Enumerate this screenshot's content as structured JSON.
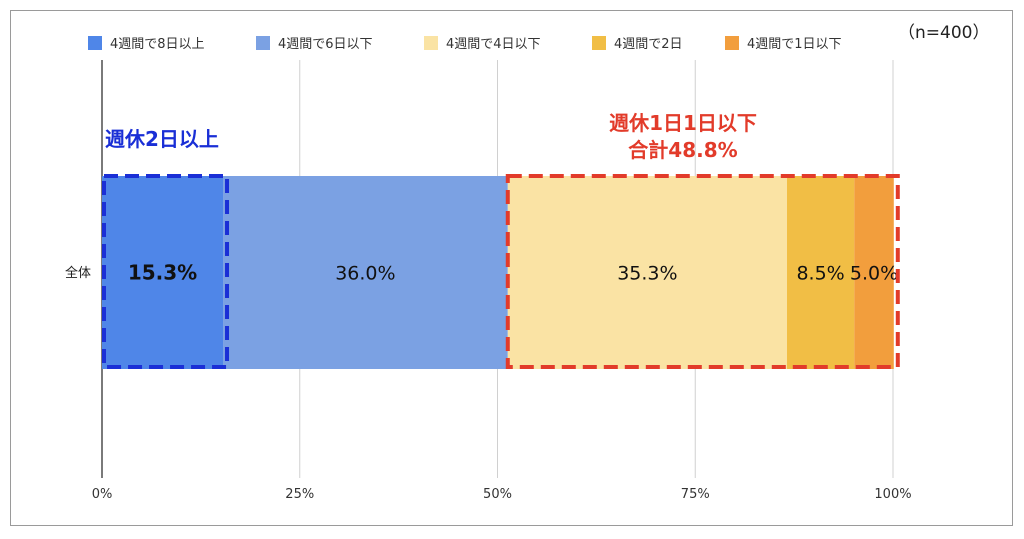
{
  "chart_data": {
    "type": "bar",
    "orientation": "horizontal",
    "stacked": true,
    "categories": [
      "全体"
    ],
    "series": [
      {
        "name": "4週間で8日以上",
        "values": [
          15.3
        ],
        "color": "#4f86e8",
        "label": "15.3%",
        "bold": true
      },
      {
        "name": "4週間で6日以下",
        "values": [
          36.0
        ],
        "color": "#7ba1e3",
        "label": "36.0%",
        "bold": false
      },
      {
        "name": "4週間で4日以下",
        "values": [
          35.3
        ],
        "color": "#fae3a4",
        "label": "35.3%",
        "bold": false
      },
      {
        "name": "4週間で2日",
        "values": [
          8.5
        ],
        "color": "#f1be45",
        "label": "8.5%",
        "bold": false
      },
      {
        "name": "4週間で1日以下",
        "values": [
          5.0
        ],
        "color": "#f29e3d",
        "label": "5.0%",
        "bold": false
      }
    ],
    "xlim": [
      0,
      100
    ],
    "xticks": [
      "0%",
      "25%",
      "50%",
      "75%",
      "100%"
    ],
    "grid": true,
    "legend_position": "top"
  },
  "sample_size": "（n=400）",
  "annotations": {
    "left": {
      "text": "週休2日以上",
      "color": "#1a2fd6"
    },
    "right": {
      "line1": "週休1日1日以下",
      "line2": "合計48.8%",
      "color": "#e23b2a"
    }
  }
}
